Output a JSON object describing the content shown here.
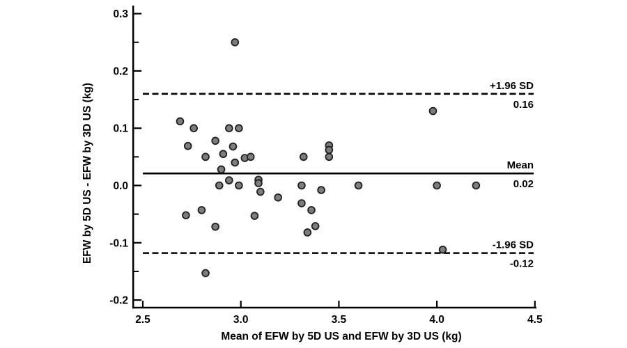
{
  "chart_data": {
    "type": "scatter",
    "title": "",
    "xlabel": "Mean of EFW by 5D US and EFW by 3D US (kg)",
    "ylabel": "EFW by 5D US - EFW by 3D US (kg)",
    "xlim": [
      2.45,
      4.51
    ],
    "ylim": [
      -0.215,
      0.315
    ],
    "grid": false,
    "x_ticks": [
      2.5,
      3.0,
      3.5,
      4.0,
      4.5
    ],
    "x_tick_labels": [
      "2.5",
      "3.0",
      "3.5",
      "4.0",
      "4.5"
    ],
    "y_ticks": [
      0.3,
      0.2,
      0.1,
      0.0,
      -0.1,
      -0.2
    ],
    "y_tick_labels": [
      "0.3",
      "0.2",
      "0.1",
      "0.0",
      "-0.1",
      "-0.2"
    ],
    "y_minor_ticks": [
      0.25,
      0.15,
      0.05,
      -0.05,
      -0.15
    ],
    "reference_lines": [
      {
        "name": "upper-loa",
        "value": 0.16,
        "style": "dashed",
        "label_top": "+1.96 SD",
        "label_bottom": "0.16"
      },
      {
        "name": "mean",
        "value": 0.021,
        "style": "solid",
        "label_top": "Mean",
        "label_bottom": "0.02"
      },
      {
        "name": "lower-loa",
        "value": -0.118,
        "style": "dashed",
        "label_top": "-1.96 SD",
        "label_bottom": "-0.12"
      }
    ],
    "marker": {
      "shape": "circle",
      "fill": "#7d7d7d",
      "stroke": "#1f1f1f",
      "radius": 4.9,
      "stroke_width": 1.8
    },
    "line_color": "#000000",
    "background_color": "#ffffff",
    "points": [
      [
        2.69,
        0.112
      ],
      [
        2.76,
        0.1
      ],
      [
        2.73,
        0.069
      ],
      [
        2.82,
        0.05
      ],
      [
        2.87,
        0.078
      ],
      [
        2.91,
        0.055
      ],
      [
        2.94,
        0.1
      ],
      [
        2.96,
        0.068
      ],
      [
        2.99,
        0.1
      ],
      [
        2.97,
        0.04
      ],
      [
        3.02,
        0.048
      ],
      [
        3.05,
        0.05
      ],
      [
        2.9,
        0.028
      ],
      [
        2.89,
        0.0
      ],
      [
        2.94,
        0.009
      ],
      [
        2.99,
        0.0
      ],
      [
        3.09,
        0.01
      ],
      [
        3.09,
        0.004
      ],
      [
        3.1,
        -0.011
      ],
      [
        3.19,
        -0.021
      ],
      [
        3.32,
        0.05
      ],
      [
        3.31,
        0.0
      ],
      [
        3.41,
        -0.008
      ],
      [
        3.45,
        0.07
      ],
      [
        3.45,
        0.062
      ],
      [
        3.45,
        0.05
      ],
      [
        3.6,
        0.0
      ],
      [
        3.98,
        0.13
      ],
      [
        4.0,
        0.0
      ],
      [
        4.2,
        0.0
      ],
      [
        2.72,
        -0.052
      ],
      [
        2.8,
        -0.043
      ],
      [
        2.87,
        -0.072
      ],
      [
        3.07,
        -0.053
      ],
      [
        3.31,
        -0.031
      ],
      [
        3.36,
        -0.043
      ],
      [
        3.34,
        -0.082
      ],
      [
        3.38,
        -0.071
      ],
      [
        2.82,
        -0.153
      ],
      [
        4.03,
        -0.112
      ],
      [
        2.97,
        0.25
      ]
    ]
  }
}
